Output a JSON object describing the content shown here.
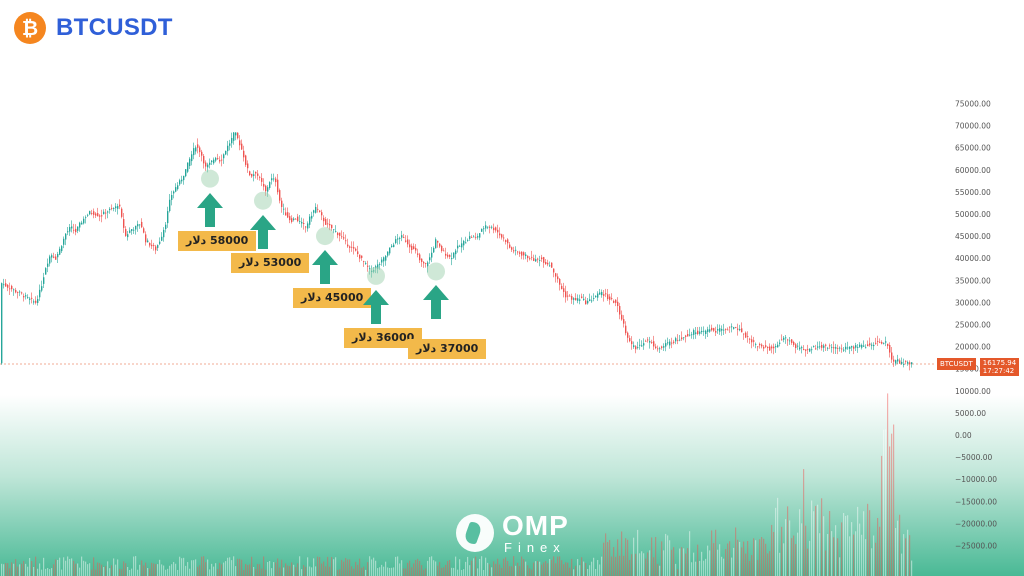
{
  "header": {
    "symbol": "BTCUSDT",
    "logo_icon": "bitcoin-logo-icon",
    "logo_glyph": "₿",
    "logo_color": "#f5861f",
    "title_color": "#2f5fd8"
  },
  "chart_data": {
    "type": "candlestick",
    "symbol": "BTCUSDT",
    "price_axis": {
      "ticks": [
        "75000.00",
        "70000.00",
        "65000.00",
        "60000.00",
        "55000.00",
        "50000.00",
        "45000.00",
        "40000.00",
        "35000.00",
        "30000.00",
        "25000.00",
        "20000.00",
        "15000.00",
        "10000.00",
        "5000.00",
        "0.00",
        "−5000.00",
        "−10000.00",
        "−15000.00",
        "−20000.00",
        "−25000.00"
      ],
      "range": [
        -27500,
        77500
      ]
    },
    "price_series": [
      [
        0,
        34500
      ],
      [
        5,
        33800
      ],
      [
        10,
        33200
      ],
      [
        15,
        32500
      ],
      [
        20,
        32000
      ],
      [
        25,
        31200
      ],
      [
        30,
        30500
      ],
      [
        35,
        30000
      ],
      [
        40,
        33000
      ],
      [
        45,
        38000
      ],
      [
        50,
        41000
      ],
      [
        55,
        40000
      ],
      [
        60,
        42500
      ],
      [
        65,
        45500
      ],
      [
        70,
        47000
      ],
      [
        75,
        46000
      ],
      [
        80,
        48000
      ],
      [
        85,
        49500
      ],
      [
        90,
        50500
      ],
      [
        95,
        50000
      ],
      [
        100,
        49500
      ],
      [
        105,
        50500
      ],
      [
        110,
        51000
      ],
      [
        115,
        51500
      ],
      [
        118,
        52500
      ],
      [
        121,
        49000
      ],
      [
        125,
        45000
      ],
      [
        130,
        46500
      ],
      [
        135,
        47000
      ],
      [
        140,
        48000
      ],
      [
        145,
        44000
      ],
      [
        150,
        43000
      ],
      [
        155,
        42000
      ],
      [
        160,
        44500
      ],
      [
        165,
        48000
      ],
      [
        170,
        54000
      ],
      [
        175,
        56000
      ],
      [
        180,
        57500
      ],
      [
        185,
        60000
      ],
      [
        190,
        63000
      ],
      [
        195,
        65500
      ],
      [
        200,
        64000
      ],
      [
        205,
        60500
      ],
      [
        210,
        61500
      ],
      [
        215,
        63000
      ],
      [
        220,
        62000
      ],
      [
        225,
        64500
      ],
      [
        230,
        66500
      ],
      [
        234,
        68500
      ],
      [
        238,
        66500
      ],
      [
        242,
        64000
      ],
      [
        246,
        60500
      ],
      [
        250,
        58500
      ],
      [
        255,
        59500
      ],
      [
        260,
        57500
      ],
      [
        265,
        55000
      ],
      [
        270,
        58000
      ],
      [
        275,
        57500
      ],
      [
        280,
        52000
      ],
      [
        285,
        50000
      ],
      [
        290,
        48500
      ],
      [
        295,
        49000
      ],
      [
        300,
        48000
      ],
      [
        305,
        47000
      ],
      [
        310,
        49500
      ],
      [
        315,
        51500
      ],
      [
        318,
        50500
      ],
      [
        322,
        49000
      ],
      [
        326,
        47500
      ],
      [
        330,
        47000
      ],
      [
        335,
        46000
      ],
      [
        340,
        45000
      ],
      [
        345,
        43500
      ],
      [
        350,
        42500
      ],
      [
        355,
        41500
      ],
      [
        360,
        40000
      ],
      [
        365,
        38500
      ],
      [
        370,
        37000
      ],
      [
        375,
        38000
      ],
      [
        380,
        39000
      ],
      [
        385,
        40500
      ],
      [
        390,
        42500
      ],
      [
        395,
        44000
      ],
      [
        400,
        45000
      ],
      [
        405,
        44000
      ],
      [
        410,
        42500
      ],
      [
        415,
        41500
      ],
      [
        420,
        39000
      ],
      [
        425,
        38500
      ],
      [
        430,
        40500
      ],
      [
        435,
        44000
      ],
      [
        440,
        42000
      ],
      [
        445,
        41000
      ],
      [
        450,
        40000
      ],
      [
        455,
        42000
      ],
      [
        460,
        43000
      ],
      [
        465,
        44000
      ],
      [
        470,
        45000
      ],
      [
        475,
        44500
      ],
      [
        480,
        46000
      ],
      [
        485,
        47500
      ],
      [
        490,
        47000
      ],
      [
        495,
        46500
      ],
      [
        500,
        45000
      ],
      [
        505,
        44000
      ],
      [
        510,
        42000
      ],
      [
        515,
        41500
      ],
      [
        520,
        41000
      ],
      [
        525,
        40500
      ],
      [
        530,
        40000
      ],
      [
        535,
        39500
      ],
      [
        540,
        40000
      ],
      [
        545,
        39000
      ],
      [
        550,
        38500
      ],
      [
        555,
        36000
      ],
      [
        560,
        33500
      ],
      [
        565,
        31500
      ],
      [
        570,
        31000
      ],
      [
        575,
        30500
      ],
      [
        580,
        31000
      ],
      [
        585,
        30000
      ],
      [
        590,
        30500
      ],
      [
        595,
        31500
      ],
      [
        600,
        32000
      ],
      [
        605,
        31500
      ],
      [
        610,
        30500
      ],
      [
        615,
        30000
      ],
      [
        620,
        27000
      ],
      [
        625,
        23500
      ],
      [
        630,
        20500
      ],
      [
        635,
        19500
      ],
      [
        640,
        20500
      ],
      [
        645,
        21500
      ],
      [
        650,
        21000
      ],
      [
        655,
        20000
      ],
      [
        660,
        19500
      ],
      [
        665,
        20500
      ],
      [
        670,
        21000
      ],
      [
        675,
        21500
      ],
      [
        680,
        22000
      ],
      [
        685,
        22500
      ],
      [
        690,
        23000
      ],
      [
        695,
        23500
      ],
      [
        700,
        23000
      ],
      [
        705,
        23500
      ],
      [
        710,
        24000
      ],
      [
        715,
        23500
      ],
      [
        720,
        23800
      ],
      [
        725,
        24000
      ],
      [
        730,
        24200
      ],
      [
        735,
        24500
      ],
      [
        740,
        23500
      ],
      [
        745,
        22500
      ],
      [
        750,
        21500
      ],
      [
        755,
        20500
      ],
      [
        760,
        20000
      ],
      [
        765,
        19800
      ],
      [
        770,
        19500
      ],
      [
        775,
        20000
      ],
      [
        780,
        21500
      ],
      [
        785,
        22000
      ],
      [
        790,
        21000
      ],
      [
        795,
        20000
      ],
      [
        800,
        19500
      ],
      [
        805,
        19200
      ],
      [
        810,
        19500
      ],
      [
        815,
        19800
      ],
      [
        820,
        20000
      ],
      [
        825,
        20000
      ],
      [
        830,
        19800
      ],
      [
        835,
        19500
      ],
      [
        840,
        19500
      ],
      [
        845,
        19600
      ],
      [
        850,
        19800
      ],
      [
        855,
        19900
      ],
      [
        860,
        20000
      ],
      [
        865,
        20200
      ],
      [
        870,
        20500
      ],
      [
        875,
        20800
      ],
      [
        880,
        21000
      ],
      [
        884,
        21200
      ],
      [
        887,
        20000
      ],
      [
        890,
        17500
      ],
      [
        893,
        16500
      ],
      [
        896,
        16800
      ],
      [
        900,
        16300
      ],
      [
        905,
        16400
      ],
      [
        910,
        16200
      ],
      [
        913,
        16175.94
      ]
    ],
    "annotations": [
      {
        "label": "58000 دلار",
        "price": 58000,
        "x": 210
      },
      {
        "label": "53000 دلار",
        "price": 53000,
        "x": 263
      },
      {
        "label": "45000 دلار",
        "price": 45000,
        "x": 325
      },
      {
        "label": "36000 دلار",
        "price": 36000,
        "x": 376
      },
      {
        "label": "37000 دلار",
        "price": 37000,
        "x": 436
      }
    ],
    "last_price": {
      "symbol": "BTCUSDT",
      "value": "16175.94",
      "time": "17:27:42",
      "color": "#e4582a"
    },
    "up_color": "#26a69a",
    "down_color": "#ef5350",
    "arrow_color": "#2aa586",
    "label_bg": "#f3b94a"
  },
  "watermark": {
    "word": "OMP",
    "sub": "Finex",
    "icon": "omp-finex-logo-icon"
  }
}
